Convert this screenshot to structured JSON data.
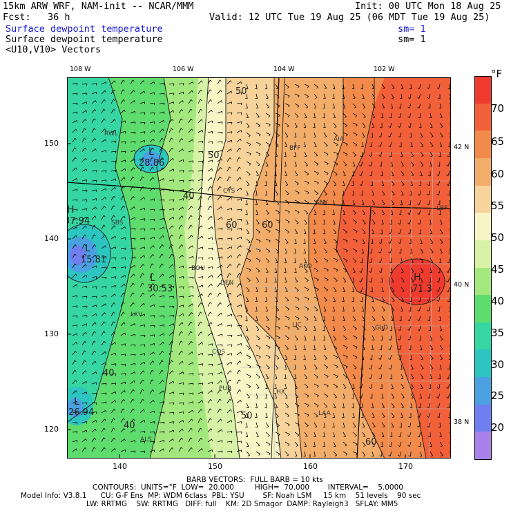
{
  "header": {
    "line1_left": "15km ARW WRF, NAM-init -- NCAR/MMM",
    "line1_right": "Init: 00 UTC Mon 18 Aug 25",
    "line2_left": "Fcst:   36 h",
    "line2_right": "Valid: 12 UTC Tue 19 Aug 25 (06 MDT Tue 19 Aug 25)",
    "field1": "Surface dewpoint temperature",
    "field1_sm": "sm= 1",
    "field2": "Surface dewpoint temperature",
    "field2_sm": "sm= 1",
    "field3": "<U10,V10> Vectors"
  },
  "axes": {
    "x_ticks": [
      "140",
      "150",
      "160",
      "170"
    ],
    "y_ticks": [
      "150",
      "140",
      "130",
      "120"
    ],
    "lon_labels": [
      "108 W",
      "106 W",
      "104 W",
      "102 W"
    ],
    "lat_labels": [
      "42 N",
      "40 N",
      "38 N"
    ]
  },
  "colorbar": {
    "unit": "°F",
    "labels": [
      "70",
      "65",
      "60",
      "55",
      "50",
      "45",
      "40",
      "35",
      "30",
      "25",
      "20"
    ],
    "colors": [
      "#ef3a2e",
      "#f2603a",
      "#f18a4a",
      "#f2ad6b",
      "#f5d39a",
      "#f7f4c6",
      "#d7f2a6",
      "#a3e87e",
      "#5fdc6e",
      "#35d6a2",
      "#2cc5c0",
      "#4aa0e0",
      "#6f7ff0",
      "#a882e8"
    ]
  },
  "map_labels": {
    "stations": [
      "RWL",
      "BFF",
      "AIA",
      "CYS",
      "SNY",
      "SBS",
      "BOU",
      "DEN",
      "AKO",
      "LBF",
      "LXV",
      "LIC",
      "GLD",
      "COS",
      "PUB",
      "LHX",
      "LAA",
      "ALS"
    ],
    "contours": [
      "50",
      "50",
      "60",
      "40",
      "60",
      "40",
      "40",
      "50",
      "60"
    ],
    "extrema": [
      {
        "mark": "L",
        "value": "28.86"
      },
      {
        "mark": "H",
        "value": "37.94"
      },
      {
        "mark": "L",
        "value": "15.81"
      },
      {
        "mark": "L",
        "value": "30.53"
      },
      {
        "mark": "H",
        "value": "71.3"
      },
      {
        "mark": "L",
        "value": "26.94"
      }
    ]
  },
  "footer": {
    "barb_line": "BARB VECTORS:  FULL BARB = 10 kts",
    "contours_line": "CONTOURS:  UNITS=°F  LOW=  20.000         HIGH=  70.000        INTERVAL=    5.0000",
    "model_line": "Model Info: V3.8.1      CU: G-F Ens  MP: WDM 6class  PBL: YSU        SF: Noah LSM     15 km    51 levels    90 sec",
    "model_line2": "LW: RRTMG    SW: RRTMG   DIFF: full    KM: 2D Smagor  DAMP: Rayleigh3   SFLAY: MM5"
  }
}
